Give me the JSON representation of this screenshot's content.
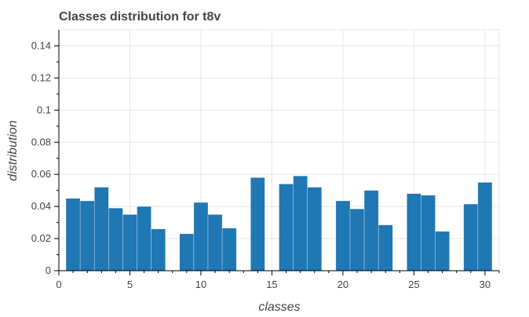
{
  "chart_data": {
    "type": "bar",
    "title": "Classes distribution for t8v",
    "xlabel": "classes",
    "ylabel": "distribution",
    "xlim": [
      0,
      31
    ],
    "ylim": [
      0,
      0.15
    ],
    "x_ticks": [
      0,
      5,
      10,
      15,
      20,
      25,
      30
    ],
    "y_ticks": [
      0,
      0.02,
      0.04,
      0.06,
      0.08,
      0.1,
      0.12,
      0.14
    ],
    "x_tick_labels": [
      "0",
      "5",
      "10",
      "15",
      "20",
      "25",
      "30"
    ],
    "y_tick_labels": [
      "0",
      "0.02",
      "0.04",
      "0.06",
      "0.08",
      "0.1",
      "0.12",
      "0.14"
    ],
    "bar_width": 1,
    "x": [
      1,
      2,
      3,
      4,
      5,
      6,
      7,
      9,
      10,
      11,
      12,
      14,
      16,
      17,
      18,
      20,
      21,
      22,
      23,
      25,
      26,
      27,
      29,
      30
    ],
    "values": [
      0.045,
      0.0435,
      0.052,
      0.039,
      0.035,
      0.04,
      0.026,
      0.023,
      0.0425,
      0.035,
      0.0265,
      0.058,
      0.054,
      0.059,
      0.052,
      0.0435,
      0.0385,
      0.05,
      0.0285,
      0.048,
      0.047,
      0.0245,
      0.0415,
      0.055
    ],
    "grid": true,
    "legend": "none",
    "colors": {
      "bar": "#1f77b4",
      "grid": "#e5e5e5",
      "text": "#444444",
      "axis": "#000000"
    }
  }
}
